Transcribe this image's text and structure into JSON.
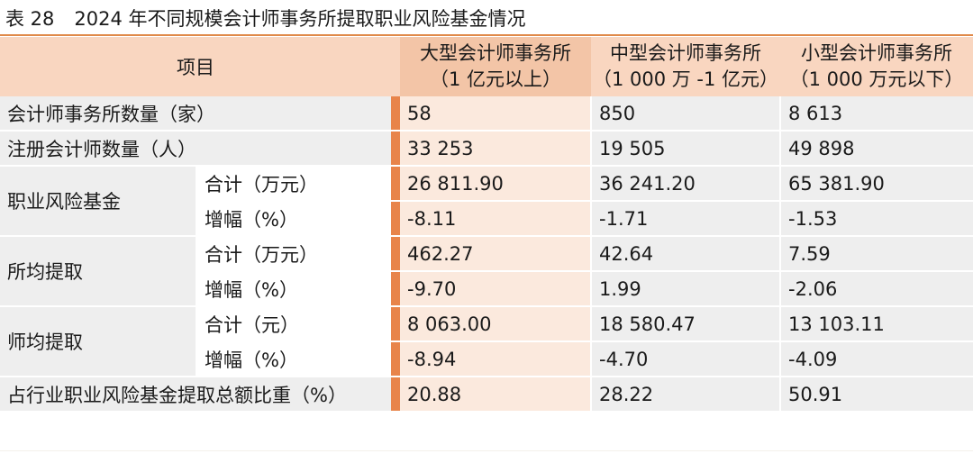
{
  "title": {
    "number": "表 28",
    "text": "2024 年不同规模会计师事务所提取职业风险基金情况"
  },
  "header": {
    "item": "项目",
    "columns": [
      {
        "line1": "大型会计师事务所",
        "line2": "（1 亿元以上）"
      },
      {
        "line1": "中型会计师事务所",
        "line2": "（1 000 万 -1 亿元）"
      },
      {
        "line1": "小型会计师事务所",
        "line2": "（1 000 万元以下）"
      }
    ]
  },
  "rows": {
    "firms": {
      "label": "会计师事务所数量（家）",
      "values": [
        "58",
        "850",
        "8 613"
      ]
    },
    "cpas": {
      "label": "注册会计师数量（人）",
      "values": [
        "33 253",
        "19 505",
        "49 898"
      ]
    },
    "fund": {
      "label": "职业风险基金",
      "total": {
        "label": "合计（万元）",
        "values": [
          "26 811.90",
          "36 241.20",
          "65 381.90"
        ]
      },
      "growth": {
        "label": "增幅（%）",
        "values": [
          "-8.11",
          "-1.71",
          "-1.53"
        ]
      }
    },
    "per_firm": {
      "label": "所均提取",
      "total": {
        "label": "合计（万元）",
        "values": [
          "462.27",
          "42.64",
          "7.59"
        ]
      },
      "growth": {
        "label": "增幅（%）",
        "values": [
          "-9.70",
          "1.99",
          "-2.06"
        ]
      }
    },
    "per_cpa": {
      "label": "师均提取",
      "total": {
        "label": "合计（元）",
        "values": [
          "8 063.00",
          "18 580.47",
          "13 103.11"
        ]
      },
      "growth": {
        "label": "增幅（%）",
        "values": [
          "-8.94",
          "-4.70",
          "-4.09"
        ]
      }
    },
    "share": {
      "label": "占行业职业风险基金提取总额比重（%）",
      "values": [
        "20.88",
        "28.22",
        "50.91"
      ]
    }
  },
  "colors": {
    "accent_bar": "#e8844a",
    "header_bg": "#f9d6c0",
    "large_header_bg": "#f3c5a7",
    "large_col_bg": "#fbe9dd",
    "row_bg": "#eeeeee"
  }
}
